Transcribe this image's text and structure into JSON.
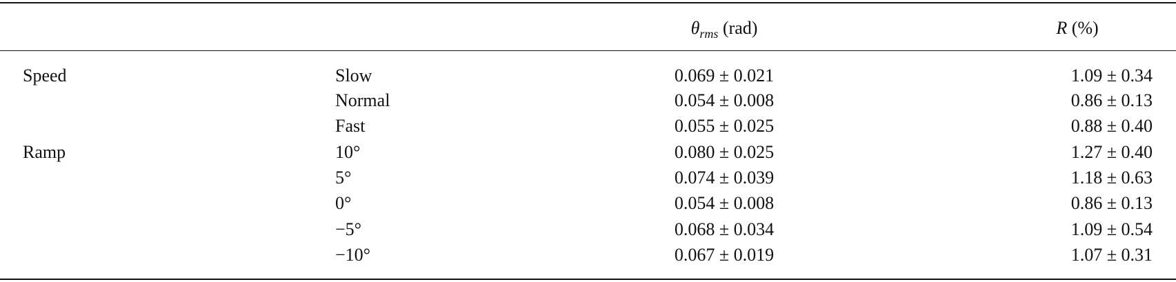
{
  "header": {
    "theta_symbol": "θ",
    "theta_subscript": "rms",
    "theta_unit": "(rad)",
    "r_symbol": "R",
    "r_unit": "(%)"
  },
  "table": {
    "groups": [
      {
        "label": "Speed",
        "rows": [
          [
            "Slow",
            "0.069 ± 0.021",
            "1.09 ± 0.34"
          ],
          [
            "Normal",
            "0.054 ± 0.008",
            "0.86 ± 0.13"
          ],
          [
            "Fast",
            "0.055 ± 0.025",
            "0.88 ± 0.40"
          ]
        ]
      },
      {
        "label": "Ramp",
        "rows": [
          [
            "10°",
            "0.080 ± 0.025",
            "1.27 ± 0.40"
          ],
          [
            "5°",
            "0.074 ± 0.039",
            "1.18 ± 0.63"
          ],
          [
            "0°",
            "0.054 ± 0.008",
            "0.86 ± 0.13"
          ],
          [
            "−5°",
            "0.068 ± 0.034",
            "1.09 ± 0.54"
          ],
          [
            "−10°",
            "0.067 ± 0.019",
            "1.07 ± 0.31"
          ]
        ]
      }
    ]
  }
}
